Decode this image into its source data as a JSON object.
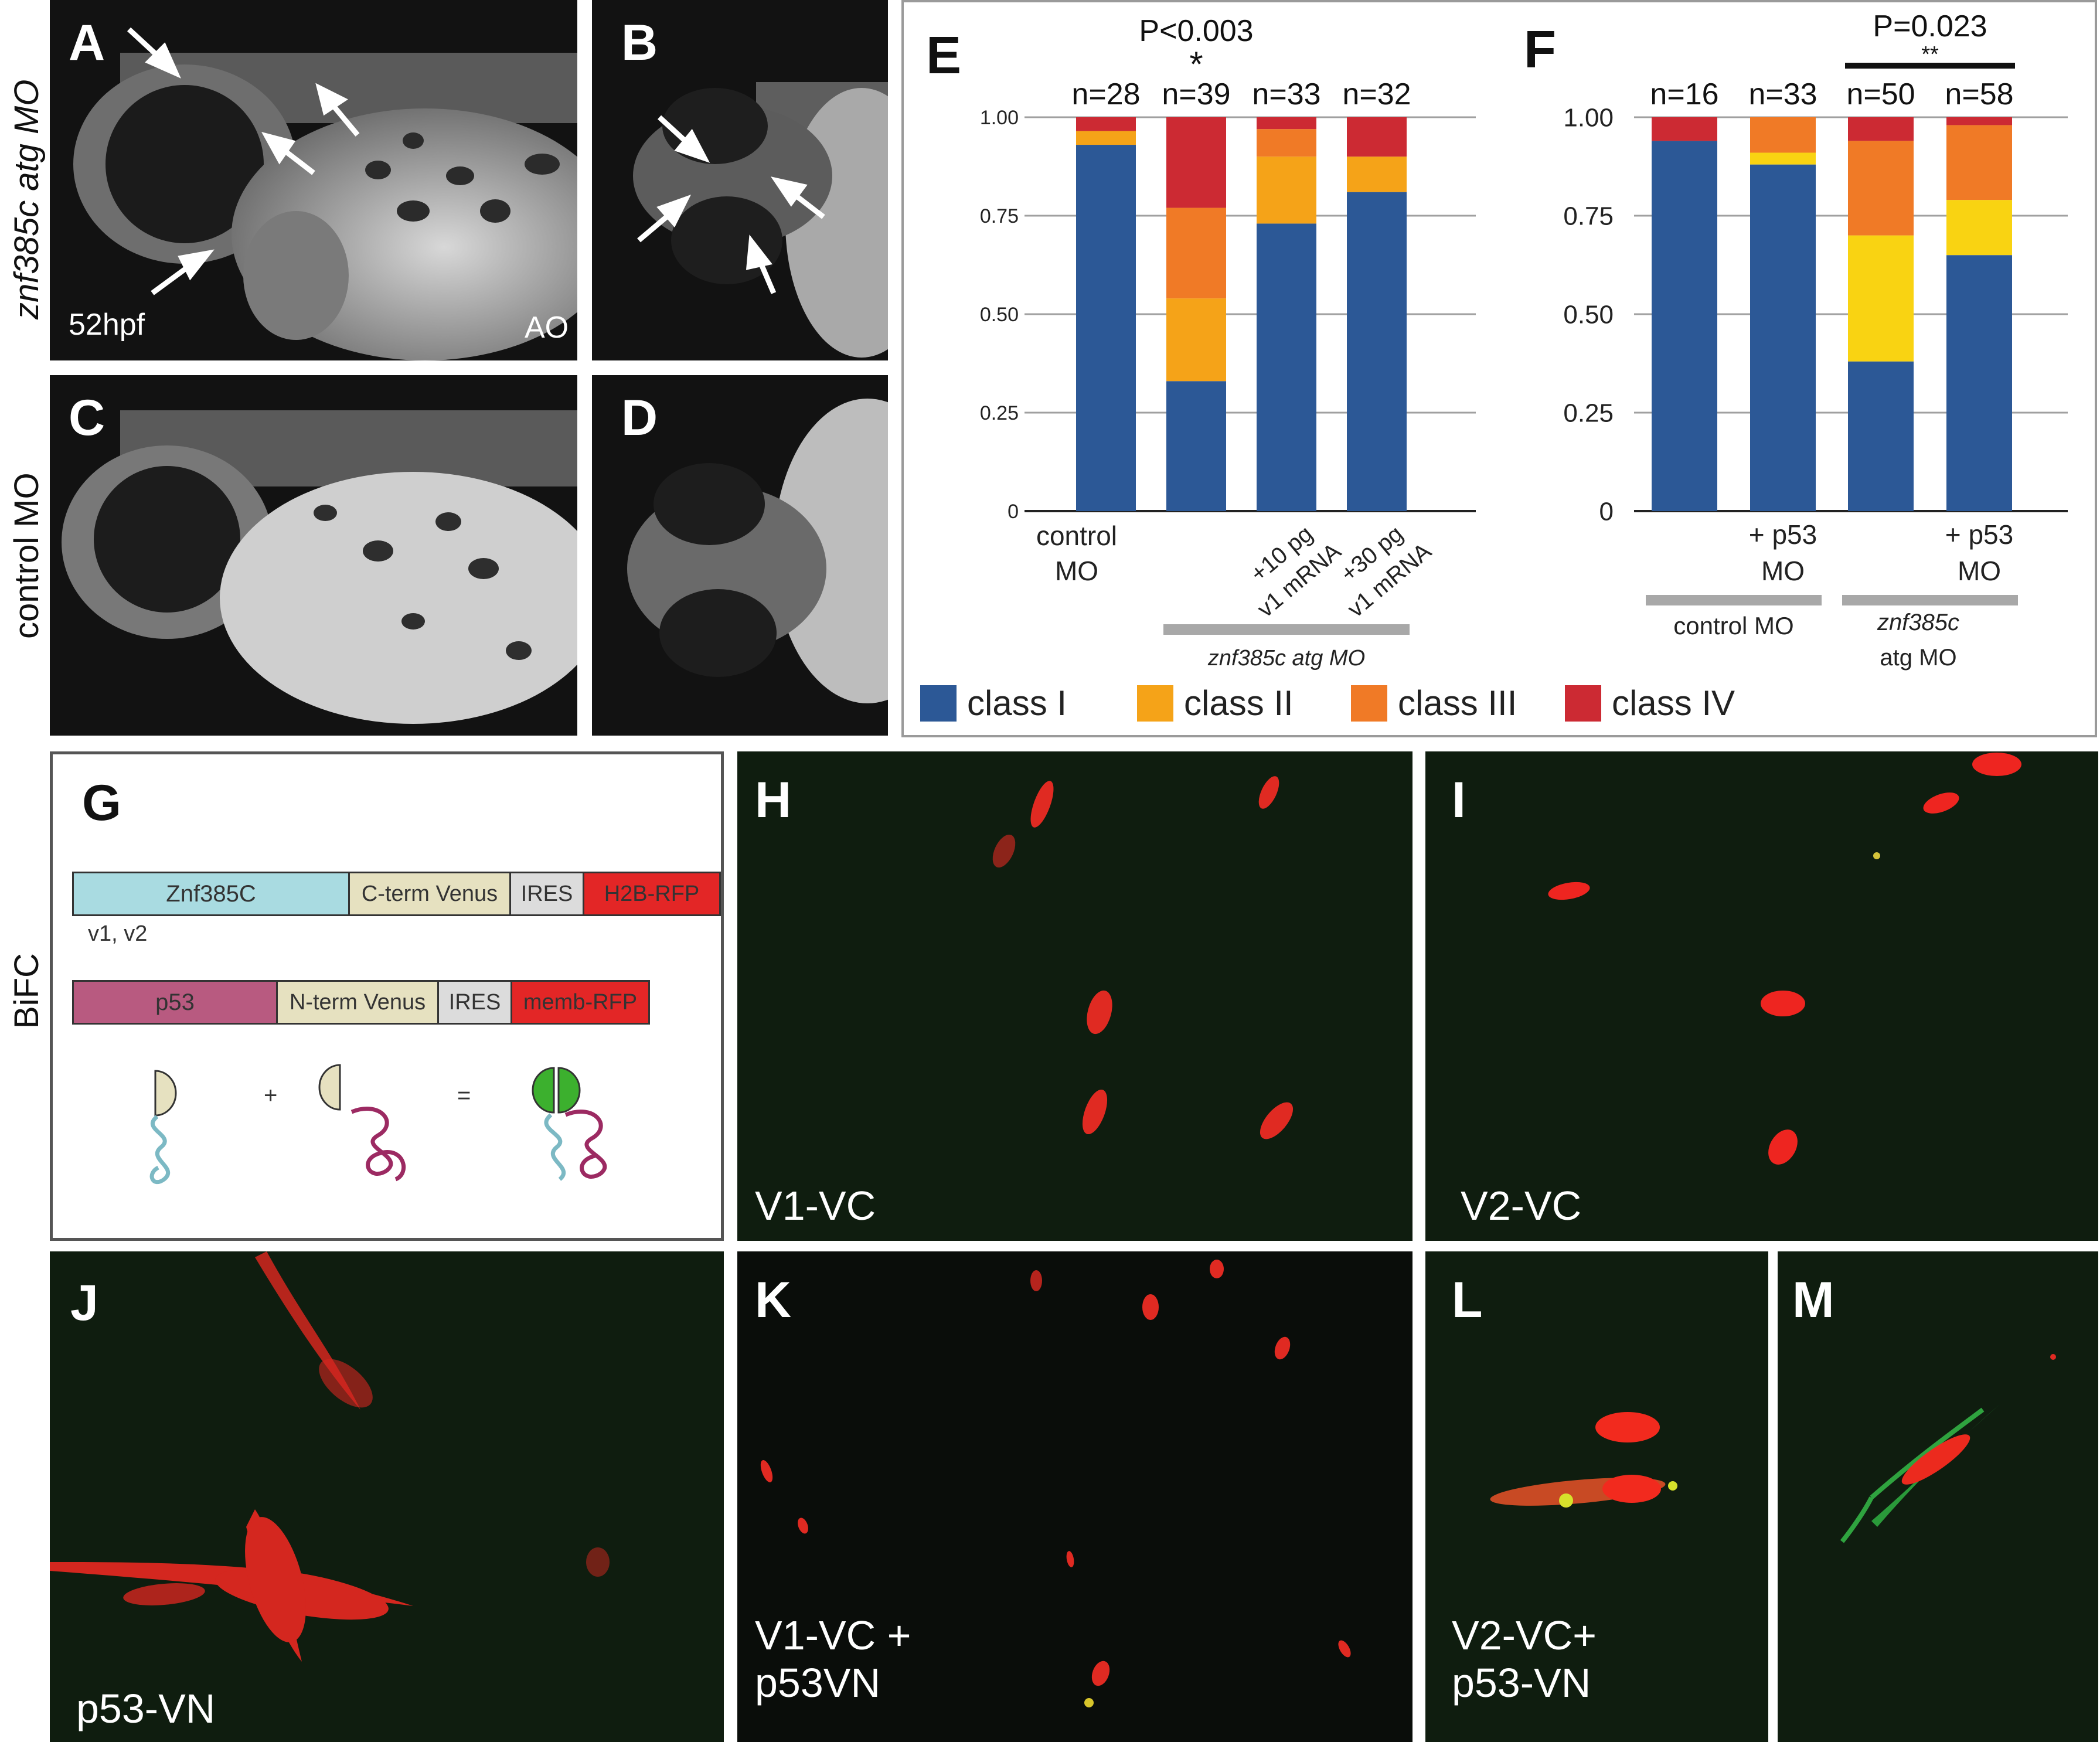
{
  "side_labels": {
    "row1": "znf385c atg MO",
    "row2": "control MO",
    "row3": "BiFC"
  },
  "panels": {
    "A": {
      "letter": "A",
      "caption_left": "52hpf",
      "caption_right": "AO"
    },
    "B": {
      "letter": "B"
    },
    "C": {
      "letter": "C"
    },
    "D": {
      "letter": "D"
    },
    "E": {
      "letter": "E"
    },
    "F": {
      "letter": "F"
    },
    "G": {
      "letter": "G"
    },
    "H": {
      "letter": "H",
      "caption": "V1-VC"
    },
    "I": {
      "letter": "I",
      "caption": "V2-VC"
    },
    "J": {
      "letter": "J",
      "caption": "p53-VN"
    },
    "K": {
      "letter": "K",
      "caption": "V1-VC +\np53VN"
    },
    "L": {
      "letter": "L",
      "caption": "V2-VC+\np53-VN"
    },
    "M": {
      "letter": "M"
    }
  },
  "construct_diagram": {
    "construct1": [
      "Znf385C",
      "C-term Venus",
      "IRES",
      "H2B-RFP"
    ],
    "construct1_note": "v1, v2",
    "construct2": [
      "p53",
      "N-term Venus",
      "IRES",
      "memb-RFP"
    ],
    "plus": "+",
    "equals": "=",
    "colors": {
      "znf": "#a9dbe1",
      "venus": "#e6e1c0",
      "ires": "#dcdcdc",
      "rfp": "#e32626",
      "p53": "#b85a80"
    }
  },
  "legend": [
    {
      "label": "class I",
      "color": "#2c5896"
    },
    {
      "label": "class II",
      "color": "#f5a318"
    },
    {
      "label": "class III",
      "color": "#f07a26"
    },
    {
      "label": "class IV",
      "color": "#cc2a33"
    }
  ],
  "chart_data": [
    {
      "panel": "E",
      "type": "bar",
      "stacked": true,
      "ylim": [
        0,
        1
      ],
      "yticks": [
        "0",
        "0.25",
        "0.50",
        "0.75",
        "1.00"
      ],
      "categories": [
        "control MO",
        "",
        "+10 pg v1 mRNA",
        "+30 pg v1 mRNA"
      ],
      "n_labels": [
        "n=28",
        "n=39",
        "n=33",
        "n=32"
      ],
      "series": [
        {
          "name": "class I",
          "color": "#2c5896",
          "values": [
            0.93,
            0.33,
            0.73,
            0.81
          ]
        },
        {
          "name": "class II",
          "color": "#f5a318",
          "values": [
            0.035,
            0.21,
            0.17,
            0.09
          ]
        },
        {
          "name": "class III",
          "color": "#f07a26",
          "values": [
            0.0,
            0.23,
            0.07,
            0.0
          ]
        },
        {
          "name": "class IV",
          "color": "#cc2a33",
          "values": [
            0.035,
            0.23,
            0.03,
            0.1
          ]
        }
      ],
      "annotation": {
        "text": "P<0.003",
        "marker": "*"
      },
      "group_label": "znf385c atg MO"
    },
    {
      "panel": "F",
      "type": "bar",
      "stacked": true,
      "ylim": [
        0,
        1
      ],
      "yticks": [
        "0",
        "0.25",
        "0.50",
        "0.75",
        "1.00"
      ],
      "categories": [
        "",
        "+ p53 MO",
        "",
        "+ p53 MO"
      ],
      "n_labels": [
        "n=16",
        "n=33",
        "n=50",
        "n=58"
      ],
      "series": [
        {
          "name": "class I",
          "color": "#2c5896",
          "values": [
            0.94,
            0.88,
            0.38,
            0.65
          ]
        },
        {
          "name": "class II",
          "color": "#f9d312",
          "values": [
            0.0,
            0.03,
            0.32,
            0.14
          ]
        },
        {
          "name": "class III",
          "color": "#f07a26",
          "values": [
            0.0,
            0.09,
            0.24,
            0.19
          ]
        },
        {
          "name": "class IV",
          "color": "#cc2a33",
          "values": [
            0.06,
            0.0,
            0.06,
            0.02
          ]
        }
      ],
      "annotation": {
        "text": "P=0.023",
        "marker": "**"
      },
      "group_labels": [
        "control MO",
        "znf385c\natg MO"
      ]
    }
  ]
}
